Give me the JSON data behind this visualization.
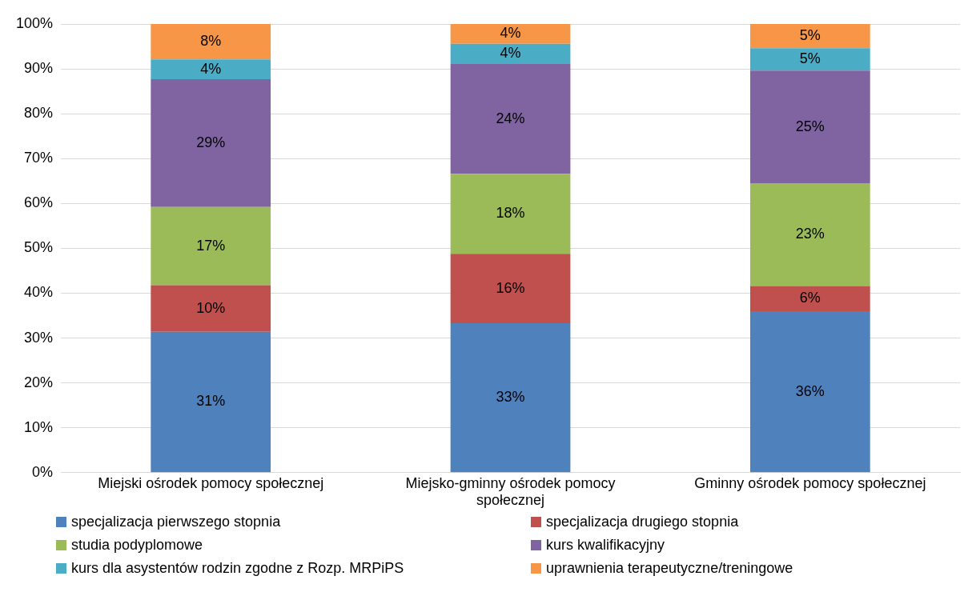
{
  "chart_data": {
    "type": "bar",
    "stacked": true,
    "categories": [
      "Miejski ośrodek pomocy społecznej",
      "Miejsko-gminny ośrodek pomocy społecznej",
      "Gminny ośrodek pomocy społecznej"
    ],
    "series": [
      {
        "name": "specjalizacja pierwszego stopnia",
        "color": "#4f81bd",
        "values": [
          31.4,
          33.3,
          36.0
        ],
        "value_labels": [
          "31%",
          "33%",
          "36%"
        ]
      },
      {
        "name": "specjalizacja drugiego stopnia",
        "color": "#c0504d",
        "values": [
          10.4,
          15.5,
          5.6
        ],
        "value_labels": [
          "10%",
          "16%",
          "6%"
        ]
      },
      {
        "name": "studia podyplomowe",
        "color": "#9bbb59",
        "values": [
          17.4,
          17.8,
          22.9
        ],
        "value_labels": [
          "17%",
          "18%",
          "23%"
        ]
      },
      {
        "name": "kurs kwalifikacyjny",
        "color": "#8064a2",
        "values": [
          28.5,
          24.5,
          25.1
        ],
        "value_labels": [
          "29%",
          "24%",
          "25%"
        ]
      },
      {
        "name": "kurs dla asystentów rodzin zgodne z Rozp. MRPiPS",
        "color": "#4bacc6",
        "values": [
          4.4,
          4.5,
          5.0
        ],
        "value_labels": [
          "4%",
          "4%",
          "5%"
        ]
      },
      {
        "name": "uprawnienia terapeutyczne/treningowe",
        "color": "#f79646",
        "values": [
          7.9,
          4.4,
          5.4
        ],
        "value_labels": [
          "8%",
          "4%",
          "5%"
        ]
      }
    ],
    "ylim": [
      0,
      100
    ],
    "yticks": [
      {
        "value": 0,
        "label": "0%"
      },
      {
        "value": 10,
        "label": "10%"
      },
      {
        "value": 20,
        "label": "20%"
      },
      {
        "value": 30,
        "label": "30%"
      },
      {
        "value": 40,
        "label": "40%"
      },
      {
        "value": 50,
        "label": "50%"
      },
      {
        "value": 60,
        "label": "60%"
      },
      {
        "value": 70,
        "label": "70%"
      },
      {
        "value": 80,
        "label": "80%"
      },
      {
        "value": 90,
        "label": "90%"
      },
      {
        "value": 100,
        "label": "100%"
      }
    ],
    "grid": "y",
    "legend": "bottom"
  }
}
